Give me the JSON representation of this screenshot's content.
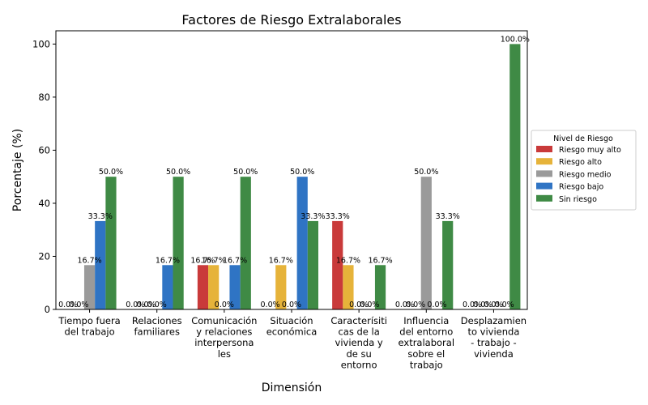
{
  "chart_data": {
    "type": "bar",
    "title": "Factores de Riesgo Extralaborales",
    "xlabel": "Dimensión",
    "ylabel": "Porcentaje (%)",
    "ylim": [
      0,
      105
    ],
    "yticks": [
      "0",
      "20",
      "40",
      "60",
      "80",
      "100"
    ],
    "grid": false,
    "legend_position": "right",
    "legend_title": "Nivel de Riesgo",
    "categories": [
      [
        "Tiempo fuera",
        "del trabajo"
      ],
      [
        "Relaciones",
        "familiares"
      ],
      [
        "Comunicación",
        "y relaciones",
        "interpersona",
        "les"
      ],
      [
        "Situación",
        "económica"
      ],
      [
        "Caracterísiti",
        "cas de la",
        "vivienda y",
        "de su",
        "entorno"
      ],
      [
        "Influencia",
        "del entorno",
        "extralaboral",
        "sobre el",
        "trabajo"
      ],
      [
        "Desplazamien",
        "to vivienda",
        "- trabajo -",
        "vivienda"
      ]
    ],
    "series": [
      {
        "name": "Riesgo muy alto",
        "color": "#c93a3a",
        "values": [
          0.0,
          0.0,
          16.7,
          0.0,
          33.3,
          0.0,
          0.0
        ],
        "labels": [
          "0.0%",
          "0.0%",
          "16.7%",
          "0.0%",
          "33.3%",
          "0.0%",
          "0.0%"
        ]
      },
      {
        "name": "Riesgo alto",
        "color": "#e6b33a",
        "values": [
          0.0,
          0.0,
          16.7,
          16.7,
          16.7,
          0.0,
          0.0
        ],
        "labels": [
          "0.0%",
          "0.0%",
          "16.7%",
          "16.7%",
          "16.7%",
          "0.0%",
          "0.0%"
        ]
      },
      {
        "name": "Riesgo medio",
        "color": "#9a9a9a",
        "values": [
          16.7,
          0.0,
          0.0,
          0.0,
          0.0,
          50.0,
          0.0
        ],
        "labels": [
          "16.7%",
          "0.0%",
          "0.0%",
          "0.0%",
          "0.0%",
          "50.0%",
          "0.0%"
        ]
      },
      {
        "name": "Riesgo bajo",
        "color": "#2f74c4",
        "values": [
          33.3,
          16.7,
          16.7,
          50.0,
          0.0,
          0.0,
          0.0
        ],
        "labels": [
          "33.3%",
          "16.7%",
          "16.7%",
          "50.0%",
          "0.0%",
          "0.0%",
          "0.0%"
        ]
      },
      {
        "name": "Sin riesgo",
        "color": "#3f8a45",
        "values": [
          50.0,
          50.0,
          50.0,
          33.3,
          16.7,
          33.3,
          100.0
        ],
        "labels": [
          "50.0%",
          "50.0%",
          "50.0%",
          "33.3%",
          "16.7%",
          "33.3%",
          "100.0%"
        ]
      }
    ]
  }
}
